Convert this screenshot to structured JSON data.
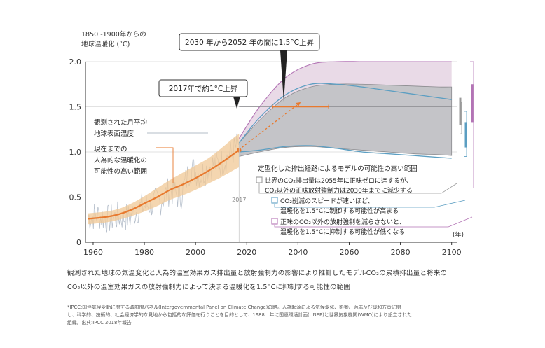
{
  "chart_data": {
    "type": "area",
    "ylabel_line1": "1850 -1900年からの",
    "ylabel_line2": "地球温暖化 (°C)",
    "x_unit": "(年)",
    "xlim": [
      1957,
      2102
    ],
    "ylim": [
      0,
      2.0
    ],
    "x_ticks": [
      "1960",
      "1980",
      "2000",
      "2020",
      "2040",
      "2060",
      "2080",
      "2100"
    ],
    "y_ticks": [
      "2.0",
      "1.5",
      "1.0",
      "0.5",
      "0"
    ],
    "grid": "horizontal",
    "observed_monthly": {
      "name_line1": "観測された月平均",
      "name_line2": "地球表面温度",
      "color": "#b7c0cc",
      "x": [
        1958,
        1962,
        1966,
        1970,
        1974,
        1978,
        1982,
        1986,
        1990,
        1994,
        1998,
        2002,
        2006,
        2010,
        2014,
        2017
      ],
      "y": [
        0.28,
        0.3,
        0.25,
        0.29,
        0.27,
        0.38,
        0.42,
        0.45,
        0.58,
        0.5,
        0.82,
        0.75,
        0.85,
        0.88,
        0.98,
        1.1
      ]
    },
    "human_induced": {
      "name_line1": "現在までの",
      "name_line2": "人為的な温暖化の",
      "name_line3": "可能性の高い範囲",
      "color": "#e8792e",
      "band_color": "#f0c896",
      "x": [
        1958,
        1965,
        1970,
        1975,
        1980,
        1985,
        1990,
        1995,
        2000,
        2005,
        2010,
        2015,
        2017
      ],
      "central": [
        0.26,
        0.28,
        0.31,
        0.36,
        0.43,
        0.5,
        0.58,
        0.64,
        0.71,
        0.79,
        0.88,
        0.98,
        1.02
      ],
      "lower": [
        0.2,
        0.22,
        0.25,
        0.29,
        0.34,
        0.4,
        0.47,
        0.52,
        0.58,
        0.65,
        0.72,
        0.8,
        0.83
      ],
      "upper": [
        0.32,
        0.34,
        0.37,
        0.43,
        0.51,
        0.6,
        0.69,
        0.77,
        0.85,
        0.93,
        1.04,
        1.16,
        1.2
      ]
    },
    "annotation_2017": "2017年で約1°C上昇",
    "annotation_2030_2052": "2030 年から2052 年の間に1.5°C上昇",
    "marker_2017_label": "2017",
    "projection_range_2030_2052": {
      "x": [
        2030,
        2052
      ],
      "y": 1.5
    },
    "projection_legend_title": "定型化した排出経路によるモデルの可能性の高い範囲",
    "projections": [
      {
        "name_line1": "世界のCO₂排出量は2055年に正味ゼロに達するが、",
        "name_line2": "CO₂以外の正味放射強制力は2030年までに減少する",
        "color": "#8a8a8e",
        "fill": "#c4c4c8",
        "x": [
          2017,
          2025,
          2035,
          2045,
          2055,
          2065,
          2075,
          2085,
          2095,
          2100
        ],
        "upper": [
          1.1,
          1.35,
          1.6,
          1.72,
          1.75,
          1.75,
          1.74,
          1.73,
          1.72,
          1.72
        ],
        "lower": [
          0.95,
          1.0,
          1.05,
          1.06,
          1.04,
          1.02,
          1.0,
          0.98,
          0.97,
          0.96
        ]
      },
      {
        "name_line1": "CO₂削減のスピードが速いほど、",
        "name_line2": "温暖化を1.5°Cに制御する可能性が高まる",
        "color": "#5b9ec2",
        "x": [
          2017,
          2025,
          2035,
          2045,
          2055,
          2065,
          2075,
          2085,
          2095,
          2100
        ],
        "upper": [
          1.1,
          1.38,
          1.63,
          1.75,
          1.75,
          1.72,
          1.68,
          1.64,
          1.6,
          1.58
        ],
        "lower": [
          1.0,
          1.02,
          1.06,
          1.07,
          1.04,
          1.0,
          0.98,
          0.96,
          0.94,
          0.93
        ]
      },
      {
        "name_line1": "正味のCO₂以外の放射強制を減らさないと、",
        "name_line2": "温暖化を1.5°Cに抑制する可能性が低くなる",
        "color": "#b374b5",
        "fill": "#e9dae7",
        "x": [
          2017,
          2025,
          2035,
          2045,
          2055,
          2065,
          2075,
          2085,
          2095,
          2100
        ],
        "upper": [
          1.15,
          1.5,
          1.82,
          1.97,
          2.0,
          2.0,
          2.0,
          2.0,
          2.0,
          2.0
        ],
        "lower": [
          0.98,
          1.02,
          1.08,
          1.12,
          1.12,
          1.12,
          1.12,
          1.12,
          1.12,
          1.12
        ]
      }
    ],
    "right_bars": [
      {
        "color": "#999999",
        "range": [
          1.3,
          1.6
        ]
      },
      {
        "color": "#5b9ec2",
        "range": [
          1.05,
          1.33
        ]
      },
      {
        "color": "#b374b5",
        "range": [
          1.33,
          1.75
        ]
      }
    ]
  },
  "caption": {
    "line1": "観測された地球の気温変化と人為的温室効果ガス排出量と放射強制力の影響により推計したモデルCO₂の累積排出量と将来の",
    "line2": "CO₂以外の温室効果ガスの放射強制力によって決まる温暖化を1.5°Cに抑制する可能性の範囲"
  },
  "footnote": {
    "line1": "*IPCC:国連気候変動に関する政府間パネル(Intergovernmental Panel on Climate Change)の略。人為起源による気候変化、影響、適応及び緩和方策に関",
    "line2": "し、科学的、技術的、社会経済学的な見地から包括的な評価を行うことを目的として、1988　年に国連環境計画(UNEP)と世界気象機関(WMO)により設立された",
    "line3": "組織。出典:IPCC 2018年報告"
  }
}
